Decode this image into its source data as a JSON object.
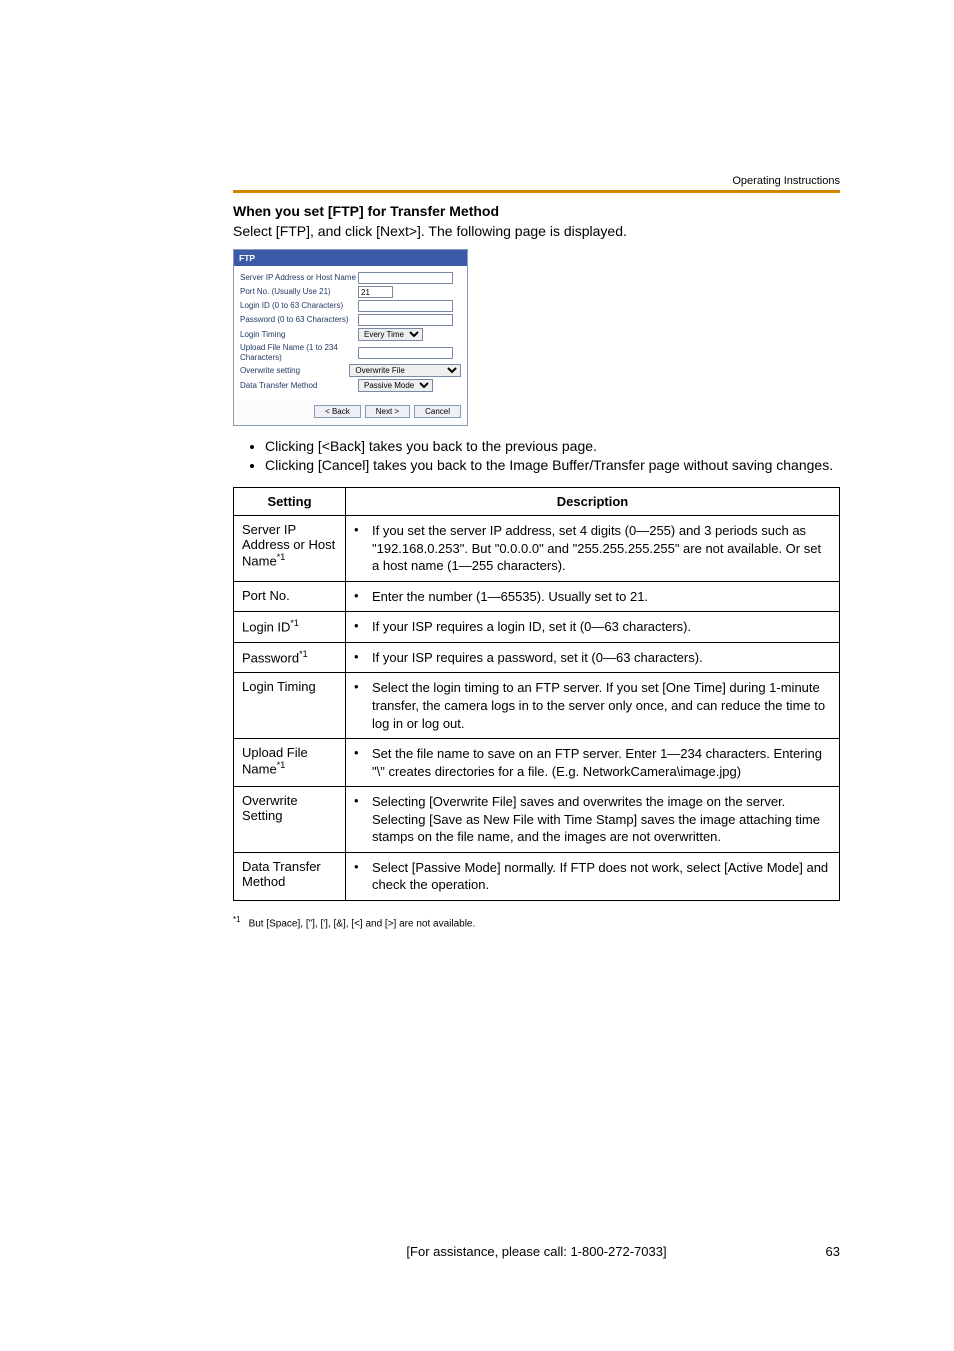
{
  "running_head": "Operating Instructions",
  "heading": "When you set [FTP] for Transfer Method",
  "lead": "Select [FTP], and click [Next>]. The following page is displayed.",
  "ftp_panel": {
    "title": "FTP",
    "rows": [
      {
        "label": "Server IP Address or Host Name",
        "type": "text",
        "value": ""
      },
      {
        "label": "Port No. (Usually Use 21)",
        "type": "text-sm",
        "value": "21"
      },
      {
        "label": "Login ID (0 to 63 Characters)",
        "type": "text",
        "value": ""
      },
      {
        "label": "Password (0 to 63 Characters)",
        "type": "text",
        "value": ""
      },
      {
        "label": "Login Timing",
        "type": "select",
        "value": "Every Time"
      },
      {
        "label": "Upload File Name (1 to 234 Characters)",
        "type": "text",
        "value": ""
      },
      {
        "label": "Overwrite setting",
        "type": "select-wide",
        "value": "Overwrite File"
      },
      {
        "label": "Data Transfer Method",
        "type": "select",
        "value": "Passive Mode"
      }
    ],
    "buttons": {
      "back": "< Back",
      "next": "Next >",
      "cancel": "Cancel"
    }
  },
  "bullets": [
    "Clicking [<Back] takes you back to the previous page.",
    "Clicking [Cancel] takes you back to the Image Buffer/Transfer page without saving changes."
  ],
  "table": {
    "headers": [
      "Setting",
      "Description"
    ],
    "rows": [
      {
        "setting": "Server IP Address or Host Name",
        "sup": "*1",
        "desc": "If you set the server IP address, set 4 digits (0—255) and 3 periods such as \"192.168.0.253\". But \"0.0.0.0\" and \"255.255.255.255\" are not available. Or set a host name (1—255 characters)."
      },
      {
        "setting": "Port No.",
        "sup": "",
        "desc": "Enter the number (1—65535). Usually set to 21."
      },
      {
        "setting": "Login ID",
        "sup": "*1",
        "desc": "If your ISP requires a login ID, set it (0—63 characters)."
      },
      {
        "setting": "Password",
        "sup": "*1",
        "desc": "If your ISP requires a password, set it (0—63 characters)."
      },
      {
        "setting": "Login Timing",
        "sup": "",
        "desc": "Select the login timing to an FTP server. If you set [One Time] during 1-minute transfer, the camera logs in to the server only once, and can reduce the time to log in or log out."
      },
      {
        "setting": "Upload File Name",
        "sup": "*1",
        "desc": "Set the file name to save on an FTP server. Enter 1—234 characters. Entering \"\\\" creates directories for a file. (E.g. NetworkCamera\\image.jpg)"
      },
      {
        "setting": "Overwrite Setting",
        "sup": "",
        "desc": "Selecting [Overwrite File] saves and overwrites the image on the server. Selecting [Save as New File with Time Stamp] saves the image attaching time stamps on the file name, and the images are not overwritten."
      },
      {
        "setting": "Data Transfer Method",
        "sup": "",
        "desc": "Select [Passive Mode] normally. If FTP does not work, select [Active Mode] and check the operation."
      }
    ]
  },
  "footnote": "But [Space], [\"], ['], [&], [<] and [>] are not available.",
  "footnote_marker": "*1",
  "footer_center": "[For assistance, please call: 1-800-272-7033]",
  "footer_page": "63"
}
